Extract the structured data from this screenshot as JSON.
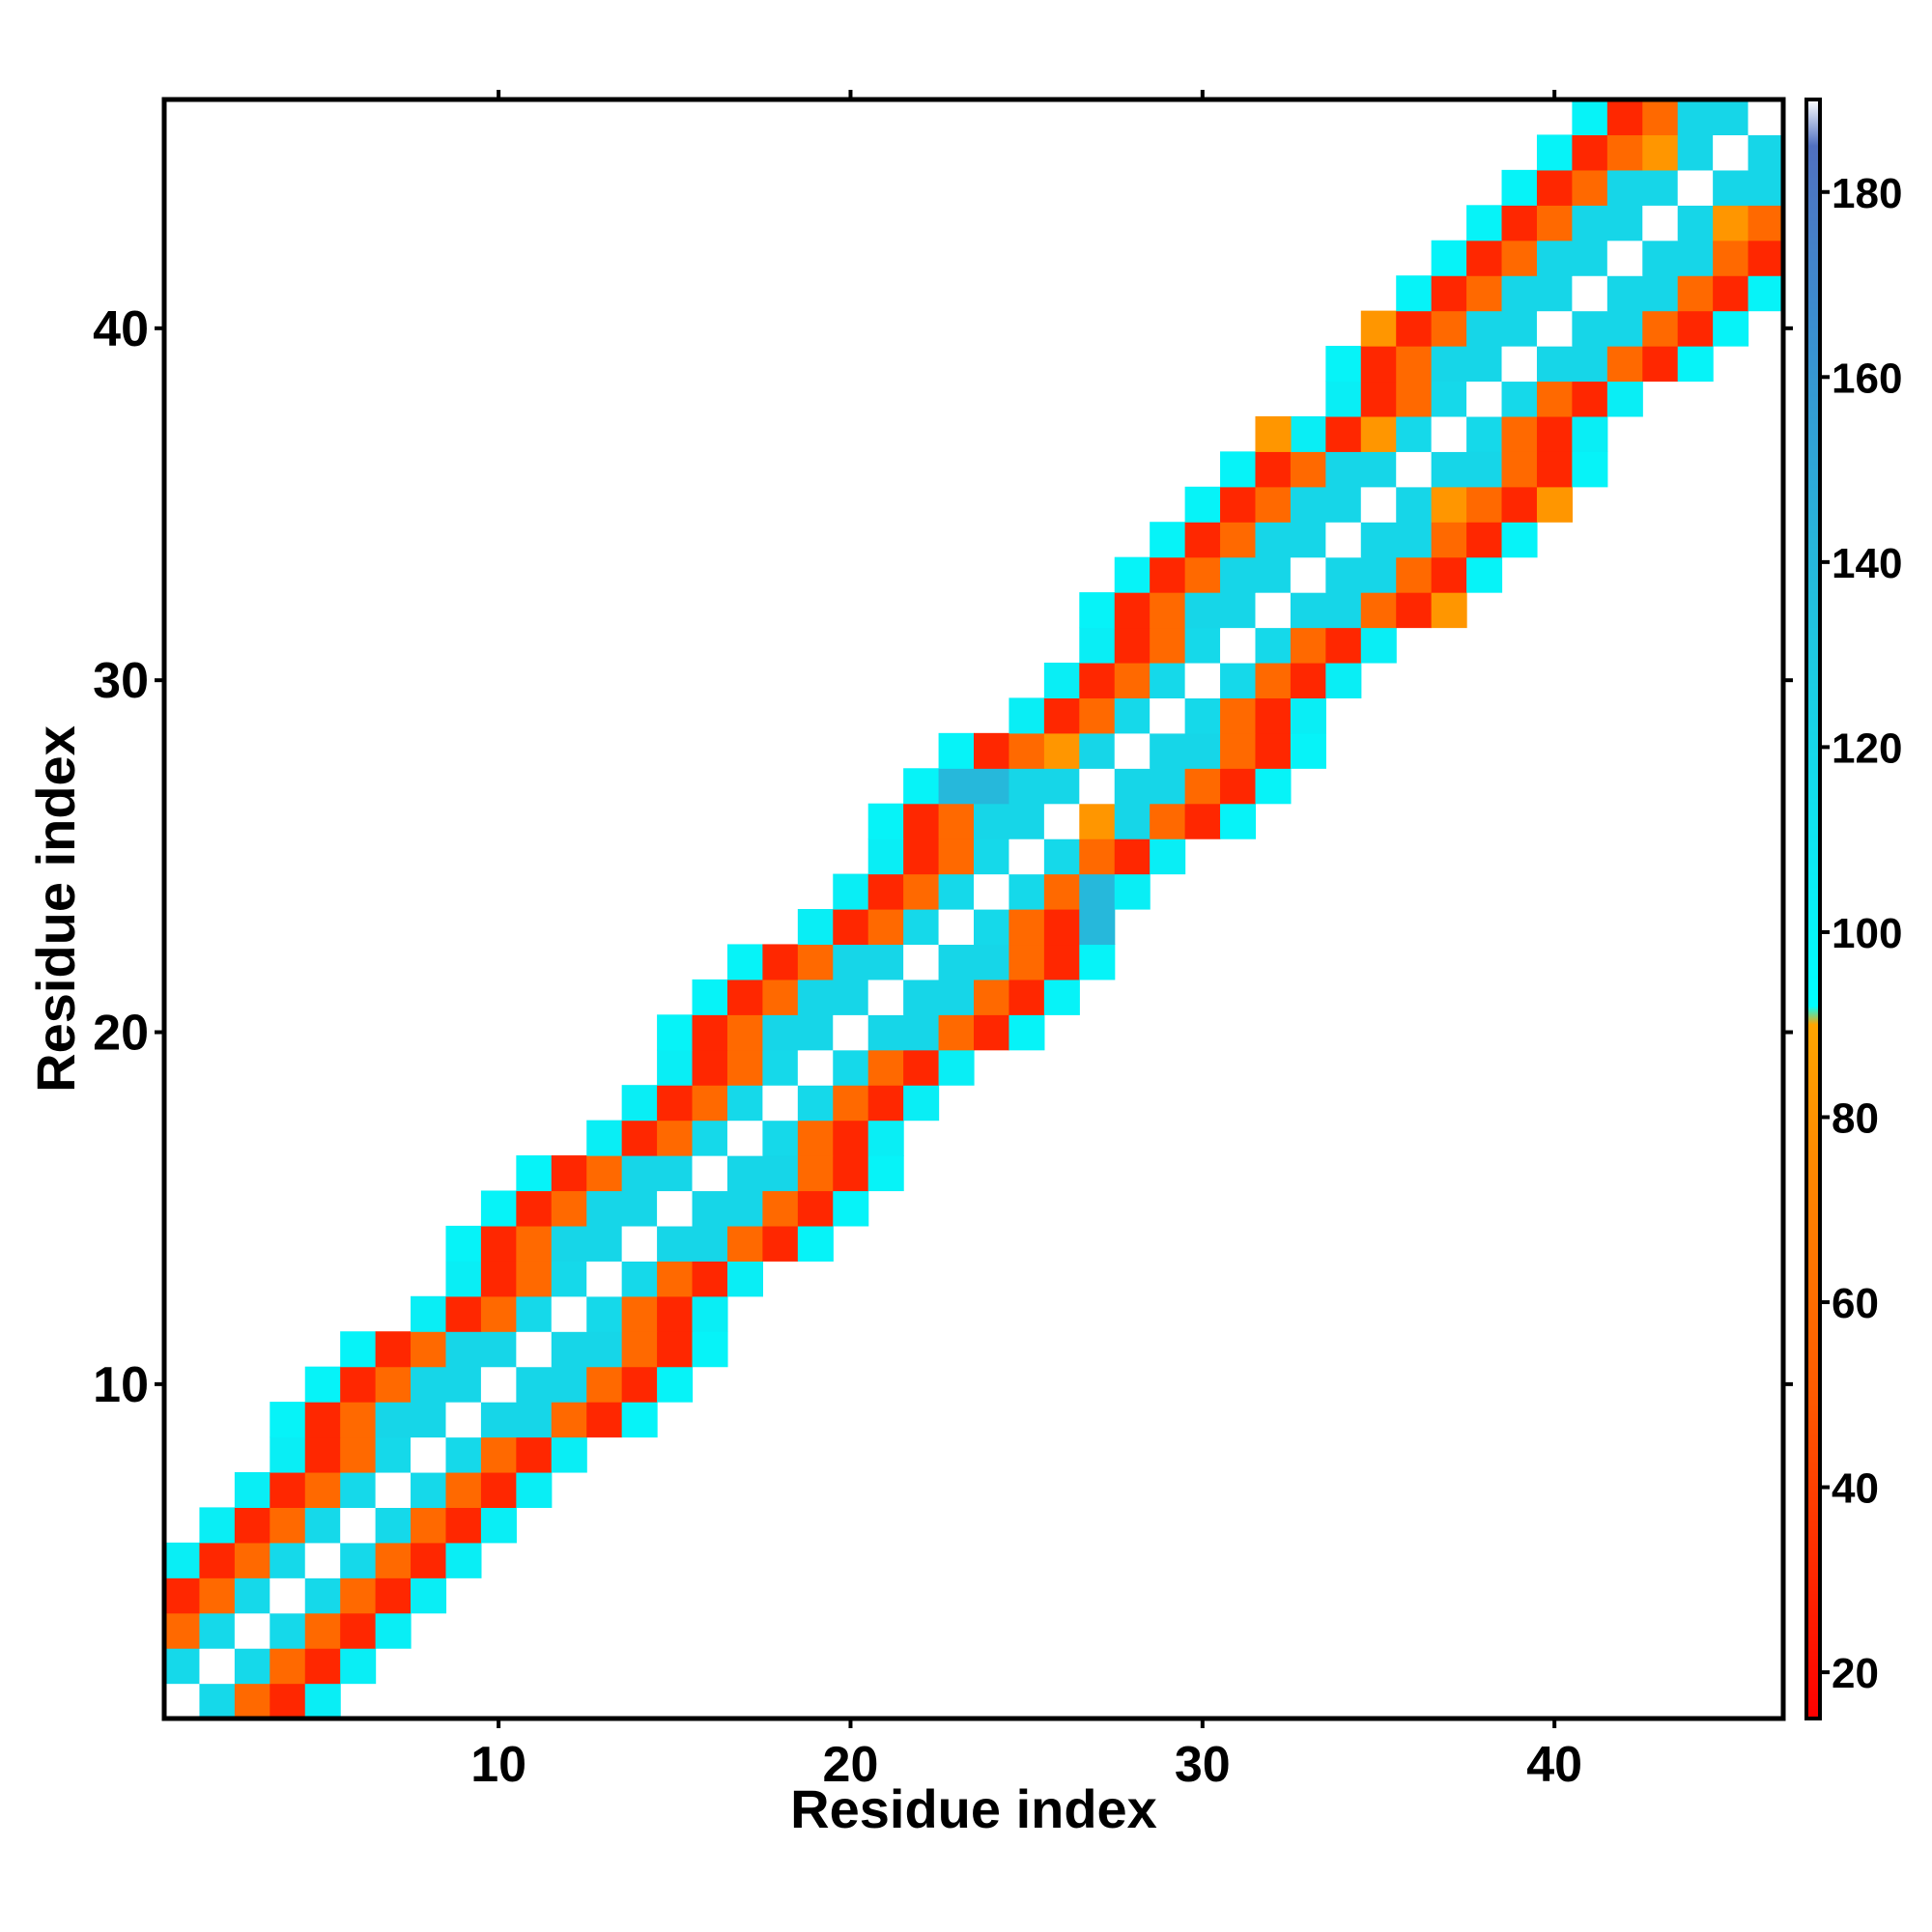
{
  "chart_data": {
    "type": "heatmap",
    "xlabel": "Residue index",
    "ylabel": "Residue index",
    "xlim": [
      0.5,
      46.5
    ],
    "ylim": [
      0.5,
      46.5
    ],
    "x_ticks": [
      10,
      20,
      30,
      40
    ],
    "y_ticks": [
      10,
      20,
      30,
      40
    ],
    "grid": false,
    "colorbar": {
      "ticks": [
        20,
        40,
        60,
        80,
        100,
        120,
        140,
        160,
        180
      ],
      "range": [
        15,
        190
      ],
      "stops": [
        {
          "value": 15,
          "color": "#ff0000"
        },
        {
          "value": 50,
          "color": "#ff5a00"
        },
        {
          "value": 90,
          "color": "#ffa500"
        },
        {
          "value": 92,
          "color": "#00ffff"
        },
        {
          "value": 130,
          "color": "#1ec8e0"
        },
        {
          "value": 165,
          "color": "#3a8fd0"
        },
        {
          "value": 185,
          "color": "#5070c0"
        },
        {
          "value": 190,
          "color": "#ffffff"
        }
      ]
    },
    "band_values_by_offset": [
      190,
      118,
      58,
      30,
      104
    ],
    "wide_band_values_by_offset": [
      190,
      120,
      120,
      58,
      30,
      100
    ],
    "wide_band_rows": [
      [
        9,
        11
      ],
      [
        14,
        16
      ],
      [
        20,
        22
      ],
      [
        26,
        28
      ],
      [
        32,
        36
      ],
      [
        39,
        46
      ]
    ],
    "overrides": [
      {
        "x": 26,
        "y": 28,
        "v": 82
      },
      {
        "x": 27,
        "y": 26,
        "v": 82
      },
      {
        "x": 23,
        "y": 27,
        "v": 140
      },
      {
        "x": 24,
        "y": 27,
        "v": 140
      },
      {
        "x": 27,
        "y": 23,
        "v": 140
      },
      {
        "x": 27,
        "y": 24,
        "v": 140
      },
      {
        "x": 32,
        "y": 37,
        "v": 82
      },
      {
        "x": 35,
        "y": 37,
        "v": 82
      },
      {
        "x": 37,
        "y": 35,
        "v": 82
      },
      {
        "x": 37,
        "y": 32,
        "v": 82
      },
      {
        "x": 35,
        "y": 40,
        "v": 82
      },
      {
        "x": 40,
        "y": 35,
        "v": 82
      },
      {
        "x": 43,
        "y": 45,
        "v": 82
      },
      {
        "x": 45,
        "y": 43,
        "v": 82
      }
    ]
  }
}
